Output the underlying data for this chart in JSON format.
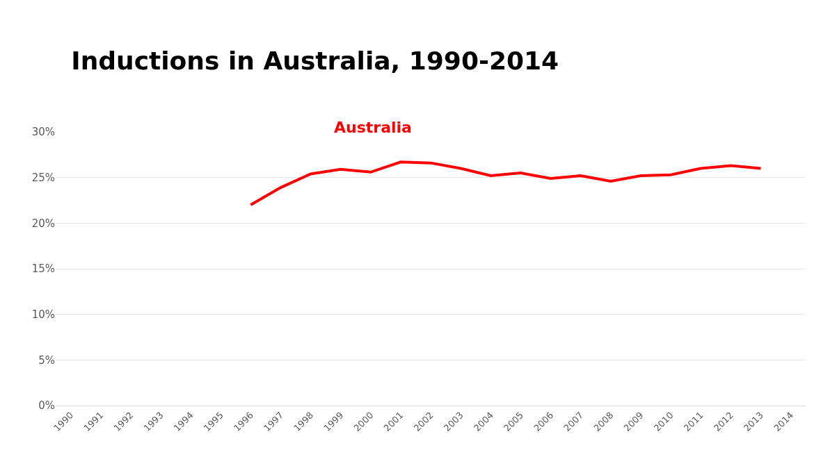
{
  "chart_data": {
    "type": "line",
    "title": "Inductions in Australia, 1990-2014",
    "categories": [
      "1990",
      "1991",
      "1992",
      "1993",
      "1994",
      "1995",
      "1996",
      "1997",
      "1998",
      "1999",
      "2000",
      "2001",
      "2002",
      "2003",
      "2004",
      "2005",
      "2006",
      "2007",
      "2008",
      "2009",
      "2010",
      "2011",
      "2012",
      "2013",
      "2014"
    ],
    "series": [
      {
        "name": "Australia",
        "color": "#ff0000",
        "values": [
          null,
          null,
          null,
          null,
          null,
          null,
          22.0,
          23.9,
          25.4,
          25.9,
          25.6,
          26.7,
          26.6,
          26.0,
          25.2,
          25.5,
          24.9,
          25.2,
          24.6,
          25.2,
          25.3,
          26.0,
          26.3,
          26.0,
          null
        ]
      }
    ],
    "ylim": [
      0,
      30
    ],
    "yticks": [
      {
        "value": 0,
        "label": "0%"
      },
      {
        "value": 5,
        "label": "5%"
      },
      {
        "value": 10,
        "label": "10%"
      },
      {
        "value": 15,
        "label": "15%"
      },
      {
        "value": 20,
        "label": "20%"
      },
      {
        "value": 25,
        "label": "25%"
      },
      {
        "value": 30,
        "label": "30%"
      }
    ],
    "grid": "y",
    "legend": false,
    "marker": "none",
    "line_style": "solid"
  }
}
